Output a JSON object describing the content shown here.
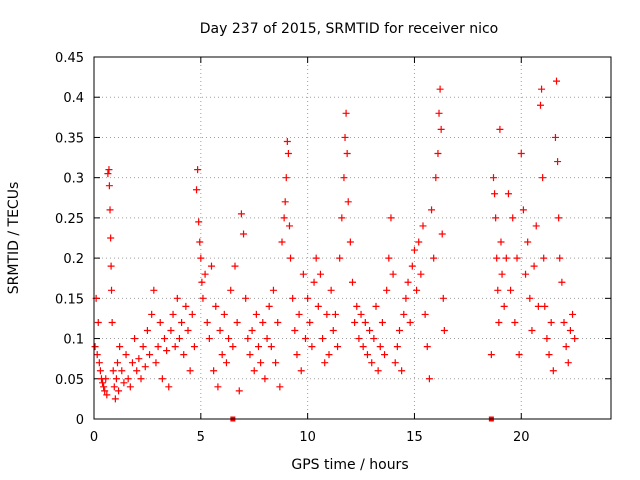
{
  "chart_data": {
    "type": "scatter",
    "title": "Day 237 of 2015, SRMTID for receiver nico",
    "xlabel": "GPS time / hours",
    "ylabel": "SRMTID / TECUs",
    "xlim": [
      0,
      24.2
    ],
    "ylim": [
      0,
      0.45
    ],
    "x_ticks": [
      0,
      5,
      10,
      15,
      20
    ],
    "x_tick_labels": [
      "0",
      "5",
      "10",
      "15",
      "20"
    ],
    "y_ticks": [
      0,
      0.05,
      0.1,
      0.15,
      0.2,
      0.25,
      0.3,
      0.35,
      0.4,
      0.45
    ],
    "y_tick_labels": [
      "0",
      "0.05",
      "0.1",
      "0.15",
      "0.2",
      "0.25",
      "0.3",
      "0.35",
      "0.4",
      "0.45"
    ],
    "grid": true,
    "marker": "+",
    "color": "#ff0000",
    "gap_markers": [
      {
        "x": 6.5,
        "y": 0.0
      },
      {
        "x": 18.6,
        "y": 0.0
      }
    ],
    "series": [
      {
        "name": "SRMTID",
        "points": [
          [
            0.05,
            0.09
          ],
          [
            0.1,
            0.15
          ],
          [
            0.15,
            0.08
          ],
          [
            0.2,
            0.12
          ],
          [
            0.25,
            0.07
          ],
          [
            0.3,
            0.06
          ],
          [
            0.35,
            0.05
          ],
          [
            0.4,
            0.045
          ],
          [
            0.45,
            0.04
          ],
          [
            0.5,
            0.035
          ],
          [
            0.55,
            0.05
          ],
          [
            0.6,
            0.03
          ],
          [
            0.65,
            0.305
          ],
          [
            0.7,
            0.31
          ],
          [
            0.72,
            0.29
          ],
          [
            0.75,
            0.26
          ],
          [
            0.78,
            0.225
          ],
          [
            0.8,
            0.19
          ],
          [
            0.82,
            0.16
          ],
          [
            0.85,
            0.12
          ],
          [
            0.9,
            0.06
          ],
          [
            0.95,
            0.04
          ],
          [
            1.0,
            0.025
          ],
          [
            1.05,
            0.05
          ],
          [
            1.1,
            0.07
          ],
          [
            1.15,
            0.035
          ],
          [
            1.2,
            0.09
          ],
          [
            1.3,
            0.06
          ],
          [
            1.4,
            0.045
          ],
          [
            1.5,
            0.08
          ],
          [
            1.6,
            0.05
          ],
          [
            1.7,
            0.04
          ],
          [
            1.8,
            0.07
          ],
          [
            1.9,
            0.1
          ],
          [
            2.0,
            0.06
          ],
          [
            2.1,
            0.075
          ],
          [
            2.2,
            0.05
          ],
          [
            2.3,
            0.09
          ],
          [
            2.4,
            0.065
          ],
          [
            2.5,
            0.11
          ],
          [
            2.6,
            0.08
          ],
          [
            2.7,
            0.13
          ],
          [
            2.8,
            0.16
          ],
          [
            2.9,
            0.07
          ],
          [
            3.0,
            0.09
          ],
          [
            3.1,
            0.12
          ],
          [
            3.2,
            0.05
          ],
          [
            3.3,
            0.1
          ],
          [
            3.4,
            0.085
          ],
          [
            3.5,
            0.04
          ],
          [
            3.6,
            0.11
          ],
          [
            3.7,
            0.13
          ],
          [
            3.8,
            0.09
          ],
          [
            3.9,
            0.15
          ],
          [
            4.0,
            0.1
          ],
          [
            4.1,
            0.12
          ],
          [
            4.2,
            0.08
          ],
          [
            4.3,
            0.14
          ],
          [
            4.4,
            0.11
          ],
          [
            4.5,
            0.06
          ],
          [
            4.6,
            0.13
          ],
          [
            4.7,
            0.09
          ],
          [
            4.8,
            0.285
          ],
          [
            4.85,
            0.31
          ],
          [
            4.9,
            0.245
          ],
          [
            4.95,
            0.22
          ],
          [
            5.0,
            0.2
          ],
          [
            5.05,
            0.17
          ],
          [
            5.1,
            0.15
          ],
          [
            5.2,
            0.18
          ],
          [
            5.3,
            0.12
          ],
          [
            5.4,
            0.1
          ],
          [
            5.5,
            0.19
          ],
          [
            5.6,
            0.06
          ],
          [
            5.7,
            0.14
          ],
          [
            5.8,
            0.04
          ],
          [
            5.9,
            0.11
          ],
          [
            6.0,
            0.08
          ],
          [
            6.1,
            0.13
          ],
          [
            6.2,
            0.07
          ],
          [
            6.3,
            0.1
          ],
          [
            6.4,
            0.16
          ],
          [
            6.5,
            0.09
          ],
          [
            6.6,
            0.19
          ],
          [
            6.7,
            0.12
          ],
          [
            6.8,
            0.035
          ],
          [
            6.9,
            0.255
          ],
          [
            7.0,
            0.23
          ],
          [
            7.1,
            0.15
          ],
          [
            7.2,
            0.1
          ],
          [
            7.3,
            0.08
          ],
          [
            7.4,
            0.11
          ],
          [
            7.5,
            0.06
          ],
          [
            7.6,
            0.13
          ],
          [
            7.7,
            0.09
          ],
          [
            7.8,
            0.07
          ],
          [
            7.9,
            0.12
          ],
          [
            8.0,
            0.05
          ],
          [
            8.1,
            0.1
          ],
          [
            8.2,
            0.14
          ],
          [
            8.3,
            0.09
          ],
          [
            8.4,
            0.16
          ],
          [
            8.5,
            0.07
          ],
          [
            8.6,
            0.12
          ],
          [
            8.7,
            0.04
          ],
          [
            8.8,
            0.22
          ],
          [
            8.9,
            0.25
          ],
          [
            8.95,
            0.27
          ],
          [
            9.0,
            0.3
          ],
          [
            9.05,
            0.345
          ],
          [
            9.1,
            0.33
          ],
          [
            9.15,
            0.24
          ],
          [
            9.2,
            0.2
          ],
          [
            9.3,
            0.15
          ],
          [
            9.4,
            0.11
          ],
          [
            9.5,
            0.08
          ],
          [
            9.6,
            0.13
          ],
          [
            9.7,
            0.06
          ],
          [
            9.8,
            0.18
          ],
          [
            9.9,
            0.1
          ],
          [
            10.0,
            0.15
          ],
          [
            10.1,
            0.12
          ],
          [
            10.2,
            0.09
          ],
          [
            10.3,
            0.17
          ],
          [
            10.4,
            0.2
          ],
          [
            10.5,
            0.14
          ],
          [
            10.6,
            0.18
          ],
          [
            10.7,
            0.1
          ],
          [
            10.8,
            0.07
          ],
          [
            10.9,
            0.13
          ],
          [
            11.0,
            0.08
          ],
          [
            11.1,
            0.16
          ],
          [
            11.2,
            0.11
          ],
          [
            11.3,
            0.13
          ],
          [
            11.4,
            0.09
          ],
          [
            11.5,
            0.2
          ],
          [
            11.6,
            0.25
          ],
          [
            11.7,
            0.3
          ],
          [
            11.75,
            0.35
          ],
          [
            11.8,
            0.38
          ],
          [
            11.85,
            0.33
          ],
          [
            11.9,
            0.27
          ],
          [
            12.0,
            0.22
          ],
          [
            12.1,
            0.17
          ],
          [
            12.2,
            0.12
          ],
          [
            12.3,
            0.14
          ],
          [
            12.4,
            0.1
          ],
          [
            12.5,
            0.13
          ],
          [
            12.6,
            0.09
          ],
          [
            12.7,
            0.12
          ],
          [
            12.8,
            0.08
          ],
          [
            12.9,
            0.11
          ],
          [
            13.0,
            0.07
          ],
          [
            13.1,
            0.1
          ],
          [
            13.2,
            0.14
          ],
          [
            13.3,
            0.06
          ],
          [
            13.4,
            0.09
          ],
          [
            13.5,
            0.12
          ],
          [
            13.6,
            0.08
          ],
          [
            13.7,
            0.16
          ],
          [
            13.8,
            0.2
          ],
          [
            13.9,
            0.25
          ],
          [
            14.0,
            0.18
          ],
          [
            14.1,
            0.07
          ],
          [
            14.2,
            0.09
          ],
          [
            14.3,
            0.11
          ],
          [
            14.4,
            0.06
          ],
          [
            14.5,
            0.13
          ],
          [
            14.6,
            0.15
          ],
          [
            14.7,
            0.17
          ],
          [
            14.8,
            0.12
          ],
          [
            14.9,
            0.19
          ],
          [
            15.0,
            0.21
          ],
          [
            15.1,
            0.16
          ],
          [
            15.2,
            0.22
          ],
          [
            15.3,
            0.18
          ],
          [
            15.4,
            0.24
          ],
          [
            15.5,
            0.13
          ],
          [
            15.6,
            0.09
          ],
          [
            15.7,
            0.05
          ],
          [
            15.8,
            0.26
          ],
          [
            15.9,
            0.2
          ],
          [
            16.0,
            0.3
          ],
          [
            16.1,
            0.33
          ],
          [
            16.15,
            0.38
          ],
          [
            16.2,
            0.41
          ],
          [
            16.25,
            0.36
          ],
          [
            16.3,
            0.23
          ],
          [
            16.35,
            0.15
          ],
          [
            16.4,
            0.11
          ],
          [
            18.6,
            0.08
          ],
          [
            18.7,
            0.3
          ],
          [
            18.75,
            0.28
          ],
          [
            18.8,
            0.25
          ],
          [
            18.85,
            0.2
          ],
          [
            18.9,
            0.16
          ],
          [
            18.95,
            0.12
          ],
          [
            19.0,
            0.36
          ],
          [
            19.05,
            0.22
          ],
          [
            19.1,
            0.18
          ],
          [
            19.2,
            0.14
          ],
          [
            19.3,
            0.2
          ],
          [
            19.4,
            0.28
          ],
          [
            19.5,
            0.16
          ],
          [
            19.6,
            0.25
          ],
          [
            19.7,
            0.12
          ],
          [
            19.8,
            0.2
          ],
          [
            19.9,
            0.08
          ],
          [
            20.0,
            0.33
          ],
          [
            20.1,
            0.26
          ],
          [
            20.2,
            0.18
          ],
          [
            20.3,
            0.22
          ],
          [
            20.4,
            0.15
          ],
          [
            20.5,
            0.11
          ],
          [
            20.6,
            0.19
          ],
          [
            20.7,
            0.24
          ],
          [
            20.8,
            0.14
          ],
          [
            20.9,
            0.39
          ],
          [
            20.95,
            0.41
          ],
          [
            21.0,
            0.3
          ],
          [
            21.05,
            0.2
          ],
          [
            21.1,
            0.14
          ],
          [
            21.2,
            0.1
          ],
          [
            21.3,
            0.08
          ],
          [
            21.4,
            0.12
          ],
          [
            21.5,
            0.06
          ],
          [
            21.6,
            0.35
          ],
          [
            21.65,
            0.42
          ],
          [
            21.7,
            0.32
          ],
          [
            21.75,
            0.25
          ],
          [
            21.8,
            0.2
          ],
          [
            21.9,
            0.17
          ],
          [
            22.0,
            0.12
          ],
          [
            22.1,
            0.09
          ],
          [
            22.2,
            0.07
          ],
          [
            22.3,
            0.11
          ],
          [
            22.4,
            0.13
          ],
          [
            22.5,
            0.1
          ]
        ]
      }
    ]
  }
}
